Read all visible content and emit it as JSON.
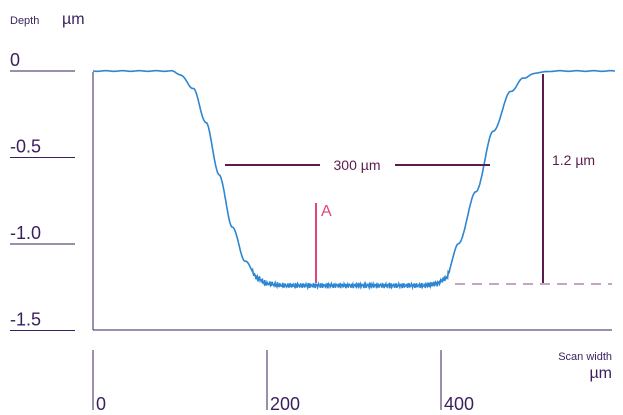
{
  "chart_data": {
    "type": "line",
    "ylabel": "Depth",
    "yunit": "µm",
    "xlabel": "Scan width",
    "xunit": "µm",
    "yticks": [
      "0",
      "-0.5",
      "-1.0",
      "-1.5"
    ],
    "ytick_values": [
      0,
      -0.5,
      -1.0,
      -1.5
    ],
    "xticks": [
      "0",
      "200",
      "400"
    ],
    "xtick_values": [
      0,
      200,
      400
    ],
    "xlim": [
      0,
      600
    ],
    "ylim": [
      -1.5,
      0
    ],
    "series": [
      {
        "x": [
          0,
          50,
          90,
          100,
          115,
          130,
          145,
          160,
          175,
          190,
          200,
          220,
          250,
          300,
          350,
          380,
          395,
          405,
          420,
          440,
          460,
          480,
          495,
          510,
          530,
          560,
          600
        ],
        "y": [
          0.0,
          0.0,
          0.0,
          -0.02,
          -0.1,
          -0.3,
          -0.6,
          -0.9,
          -1.1,
          -1.2,
          -1.23,
          -1.24,
          -1.24,
          -1.24,
          -1.24,
          -1.24,
          -1.23,
          -1.2,
          -1.0,
          -0.7,
          -0.35,
          -0.12,
          -0.04,
          -0.01,
          0.0,
          0.0,
          0.0
        ]
      }
    ],
    "annotations": {
      "width_label": "300 µm",
      "depth_label": "1.2 µm",
      "point_label": "A"
    },
    "colors": {
      "line": "#2e86d1",
      "annotation": "#5c1d4d",
      "marker": "#e0457b",
      "baseline_dash": "#a0709a",
      "axis": "#3a1f5c"
    }
  }
}
